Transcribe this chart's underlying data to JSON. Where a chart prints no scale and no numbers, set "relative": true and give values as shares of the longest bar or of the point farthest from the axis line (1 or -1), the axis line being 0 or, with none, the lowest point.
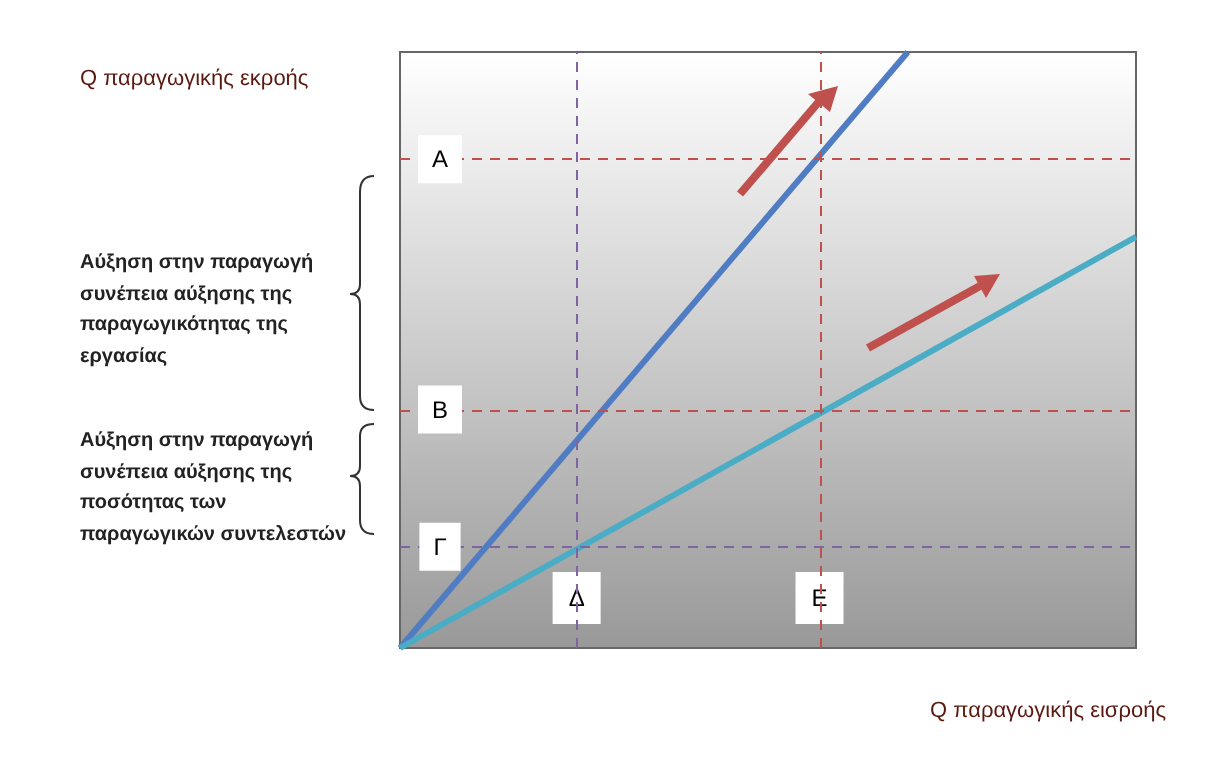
{
  "chart_data": {
    "type": "line",
    "relative": true,
    "xlabel": "Q παραγωγικής εισροής",
    "ylabel": "Q παραγωγικής εκροής",
    "tick_labels": "x",
    "marker": "none",
    "line_style": "solid",
    "categories": [
      null,
      null,
      null,
      null,
      null,
      null,
      null,
      null,
      null,
      null,
      null,
      null,
      null,
      null,
      null,
      null,
      null,
      null,
      null,
      null,
      null,
      null,
      null,
      null,
      "Δ",
      null,
      null,
      null,
      null,
      null,
      null,
      null,
      null,
      null,
      null,
      null,
      null,
      null,
      null,
      null,
      null,
      null,
      null,
      null,
      null,
      null,
      null,
      null,
      null,
      null,
      null,
      null,
      null,
      null,
      null,
      null,
      null,
      "Ε",
      null,
      null,
      null,
      null,
      null,
      null,
      null,
      null,
      null,
      null,
      null,
      null,
      null,
      null,
      null,
      null,
      null,
      null,
      null,
      null,
      null,
      null,
      null,
      null,
      null,
      null,
      null,
      null,
      null,
      null,
      null,
      null,
      null,
      null,
      null,
      null,
      null,
      null,
      null,
      null,
      null,
      null,
      null
    ],
    "series": [
      {
        "color": "#4f7cc2",
        "values": [
          0,
          null,
          null,
          null,
          null,
          null,
          null,
          null,
          null,
          null,
          null,
          null,
          null,
          null,
          null,
          null,
          null,
          null,
          null,
          null,
          null,
          null,
          null,
          null,
          null,
          null,
          null,
          null,
          null,
          null,
          null,
          null,
          null,
          null,
          null,
          null,
          null,
          null,
          null,
          null,
          null,
          null,
          null,
          null,
          null,
          null,
          null,
          null,
          null,
          null,
          null,
          null,
          null,
          null,
          null,
          null,
          null,
          null,
          null,
          null,
          null,
          null,
          null,
          null,
          null,
          null,
          null,
          null,
          null,
          1,
          null,
          null,
          null,
          null,
          null,
          null,
          null,
          null,
          null,
          null,
          null,
          null,
          null,
          null,
          null,
          null,
          null,
          null,
          null,
          null,
          null,
          null,
          null,
          null,
          null,
          null,
          null,
          null,
          null,
          null,
          null
        ]
      },
      {
        "color": "#4bacc6",
        "values": [
          0,
          null,
          null,
          null,
          null,
          null,
          null,
          null,
          null,
          null,
          null,
          null,
          null,
          null,
          null,
          null,
          null,
          null,
          null,
          null,
          null,
          null,
          null,
          null,
          null,
          null,
          null,
          null,
          null,
          null,
          null,
          null,
          null,
          null,
          null,
          null,
          null,
          null,
          null,
          null,
          null,
          null,
          null,
          null,
          null,
          null,
          null,
          null,
          null,
          null,
          null,
          null,
          null,
          null,
          null,
          null,
          null,
          null,
          null,
          null,
          null,
          null,
          null,
          null,
          null,
          null,
          null,
          null,
          null,
          null,
          null,
          null,
          null,
          null,
          null,
          null,
          null,
          null,
          null,
          null,
          null,
          null,
          null,
          null,
          null,
          null,
          null,
          null,
          null,
          null,
          null,
          null,
          null,
          null,
          null,
          null,
          null,
          null,
          null,
          null,
          0.69
        ]
      }
    ],
    "ref_lines": [
      {
        "axis": "y",
        "value": 0.82,
        "label": "A",
        "color": "#c0504d",
        "line_style": "dashed"
      },
      {
        "axis": "y",
        "value": 0.4,
        "label": "B",
        "color": "#c0504d",
        "line_style": "dashed"
      },
      {
        "axis": "y",
        "value": 0.17,
        "label": "Γ",
        "color": "#8064a2",
        "line_style": "dashed"
      },
      {
        "axis": "x",
        "value": "Δ",
        "color": "#8064a2",
        "line_style": "dashed"
      },
      {
        "axis": "x",
        "value": "Ε",
        "color": "#c0504d",
        "line_style": "dashed"
      }
    ],
    "annotations": [
      "Αύξηση στην παραγωγή συνέπεια αύξησης της παραγωγικότητας της εργασίας",
      "Αύξηση στην παραγωγή συνέπεια αύξησης της ποσότητας των παραγωγικών συντελεστών"
    ]
  }
}
